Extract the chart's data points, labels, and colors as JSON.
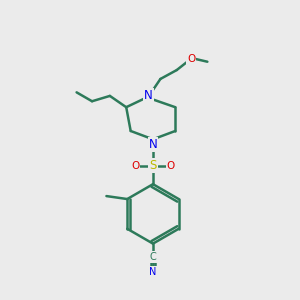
{
  "bg_color": "#ebebeb",
  "bond_color": "#2d7a5a",
  "n_color": "#0000ee",
  "o_color": "#dd0000",
  "s_color": "#bbbb00",
  "line_width": 1.8,
  "fig_size": [
    3.0,
    3.0
  ],
  "dpi": 100,
  "xlim": [
    0,
    10
  ],
  "ylim": [
    0,
    10
  ]
}
